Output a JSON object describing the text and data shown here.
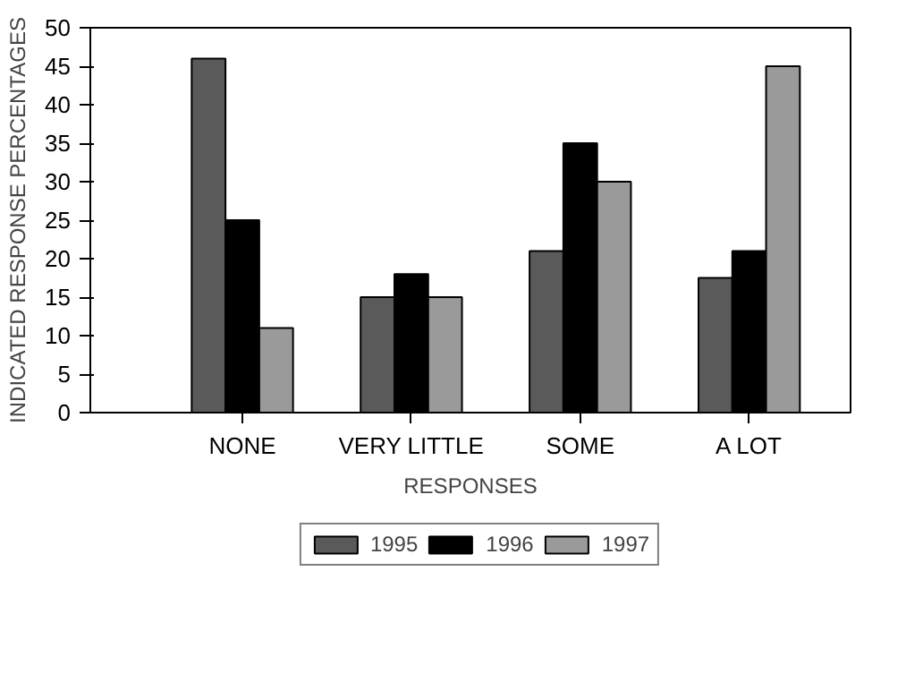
{
  "chart_data": {
    "type": "bar",
    "xlabel": "RESPONSES",
    "ylabel": "INDICATED RESPONSE PERCENTAGES",
    "categories": [
      "NONE",
      "VERY LITTLE",
      "SOME",
      "A LOT"
    ],
    "series": [
      {
        "name": "1995",
        "color": "#5a5a5a",
        "values": [
          46,
          15,
          21,
          17.5
        ]
      },
      {
        "name": "1996",
        "color": "#000000",
        "values": [
          25,
          18,
          35,
          21
        ]
      },
      {
        "name": "1997",
        "color": "#9a9a9a",
        "values": [
          11,
          15,
          30,
          45
        ]
      }
    ],
    "ylim": [
      0,
      50
    ],
    "yticks": [
      0,
      5,
      10,
      15,
      20,
      25,
      30,
      35,
      40,
      45,
      50
    ],
    "grid": false,
    "legend": "bottom"
  }
}
